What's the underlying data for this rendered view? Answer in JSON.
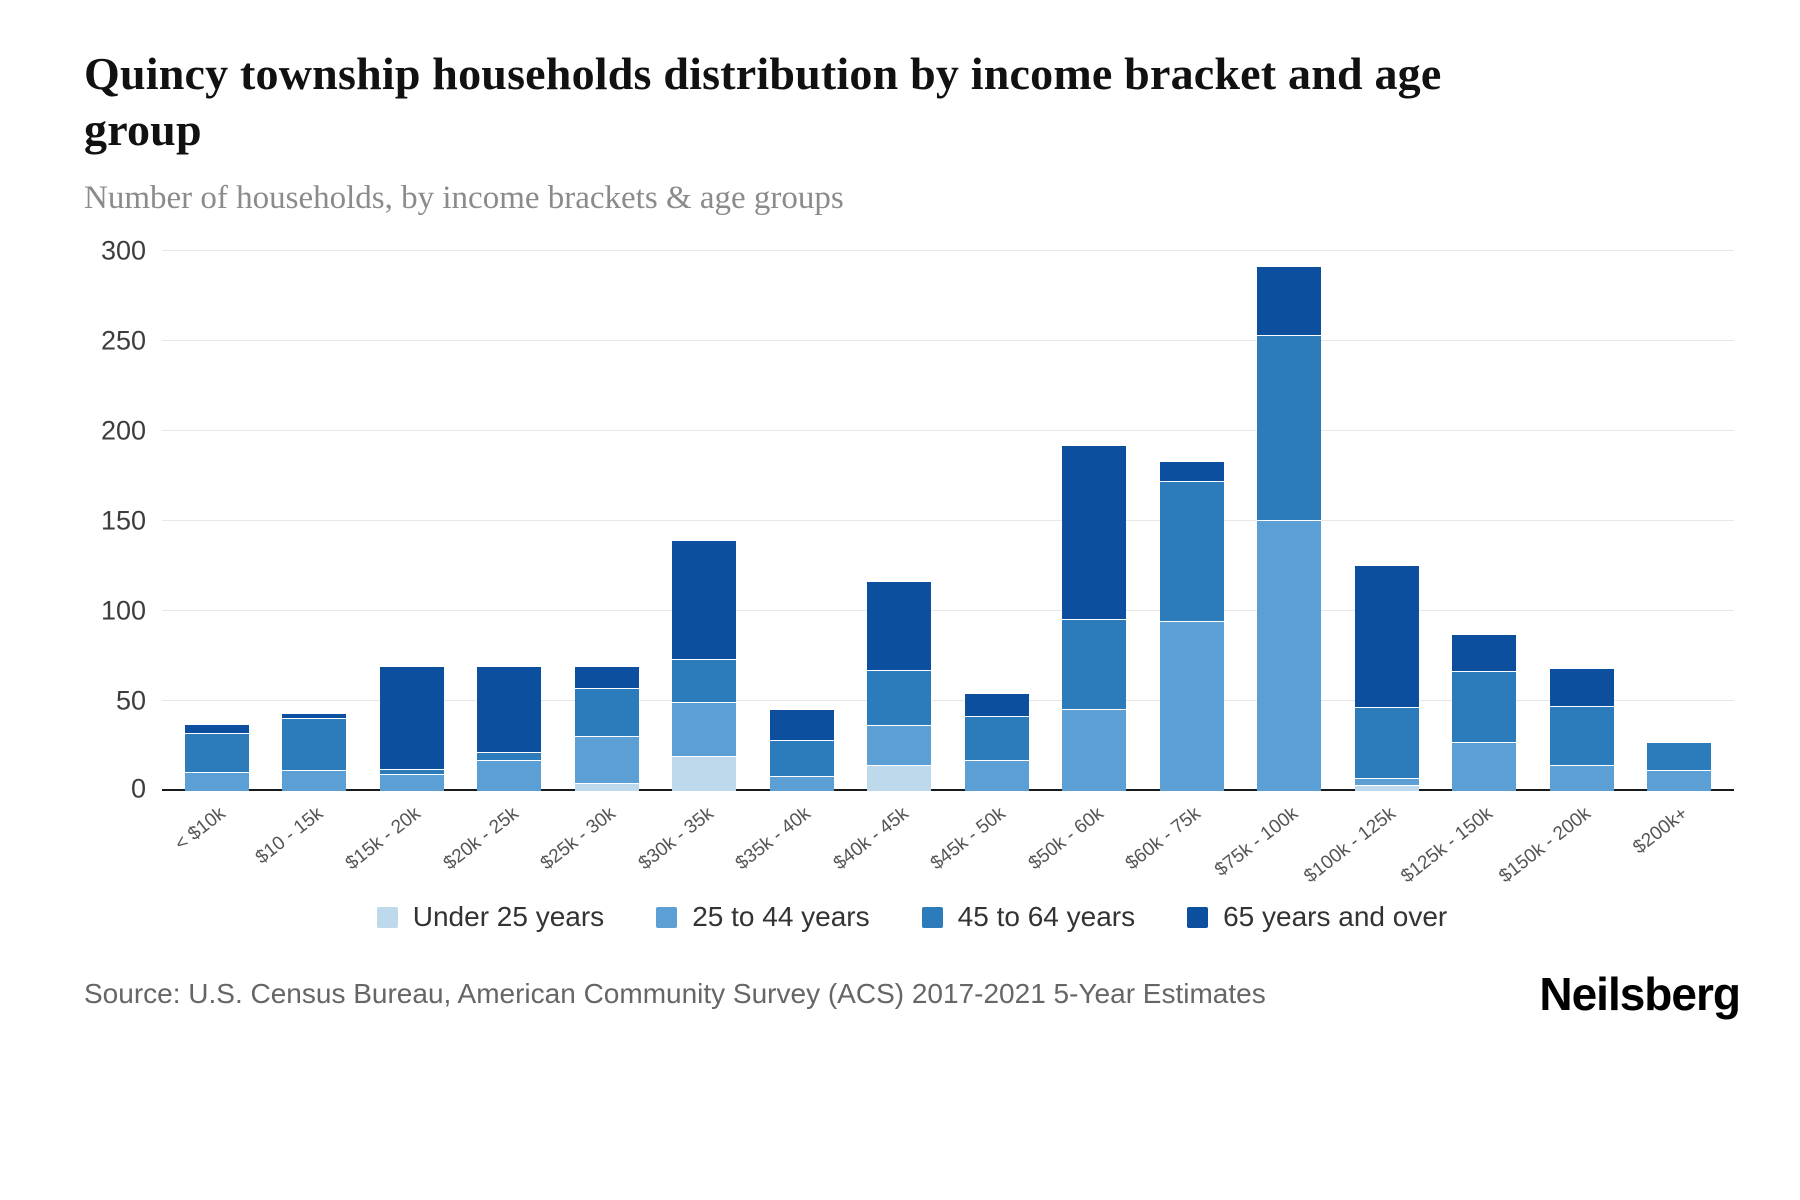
{
  "chart_data": {
    "type": "bar",
    "stacked": true,
    "title": "Quincy township households distribution by income bracket and age group",
    "subtitle": "Number of households, by income brackets & age groups",
    "ylabel": "Number of households",
    "ylim": [
      0,
      300
    ],
    "yticks": [
      0,
      50,
      100,
      150,
      200,
      250,
      300
    ],
    "grid": "horizontal",
    "legend_position": "bottom",
    "categories": [
      "< $10k",
      "$10 - 15k",
      "$15k - 20k",
      "$20k - 25k",
      "$25k - 30k",
      "$30k - 35k",
      "$35k - 40k",
      "$40k - 45k",
      "$45k - 50k",
      "$50k - 60k",
      "$60k - 75k",
      "$75k - 100k",
      "$100k - 125k",
      "$125k - 150k",
      "$150k - 200k",
      "$200k+"
    ],
    "series": [
      {
        "name": "Under 25 years",
        "color": "#bed9eb",
        "values": [
          0,
          0,
          0,
          0,
          4,
          19,
          0,
          14,
          0,
          0,
          0,
          0,
          3,
          0,
          0,
          0
        ]
      },
      {
        "name": "25 to 44 years",
        "color": "#5b9fd4",
        "values": [
          10,
          11,
          9,
          17,
          26,
          30,
          8,
          22,
          17,
          45,
          94,
          150,
          4,
          27,
          14,
          11
        ]
      },
      {
        "name": "45 to 64 years",
        "color": "#2c7cbc",
        "values": [
          22,
          29,
          3,
          4,
          27,
          24,
          20,
          31,
          24,
          50,
          78,
          103,
          39,
          39,
          33,
          16
        ]
      },
      {
        "name": "65 years and over",
        "color": "#0b4f9e",
        "values": [
          5,
          3,
          57,
          48,
          12,
          66,
          17,
          49,
          13,
          97,
          11,
          38,
          79,
          21,
          21,
          0
        ]
      }
    ],
    "source": "Source: U.S. Census Bureau, American Community Survey (ACS) 2017-2021 5-Year Estimates",
    "brand": "Neilsberg"
  }
}
